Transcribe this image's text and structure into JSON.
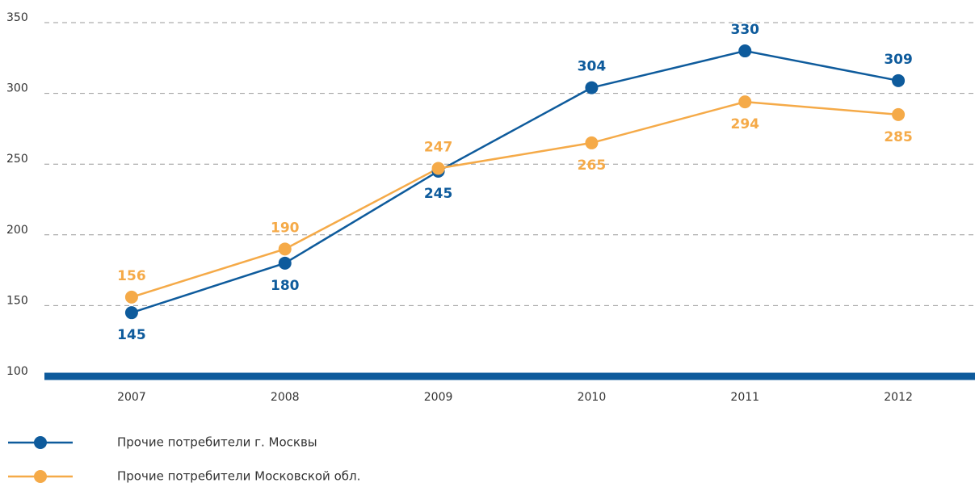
{
  "chart_data": {
    "type": "line",
    "categories": [
      "2007",
      "2008",
      "2009",
      "2010",
      "2011",
      "2012"
    ],
    "series": [
      {
        "name": "Прочие потребители г. Москвы",
        "color": "#0e5b9c",
        "values": [
          145,
          180,
          245,
          304,
          330,
          309
        ]
      },
      {
        "name": "Прочие потребители Московской обл.",
        "color": "#f5aa48",
        "values": [
          156,
          190,
          247,
          265,
          294,
          285
        ]
      }
    ],
    "ylim": [
      100,
      350
    ],
    "yticks": [
      100,
      150,
      200,
      250,
      300,
      350
    ],
    "grid": true
  }
}
